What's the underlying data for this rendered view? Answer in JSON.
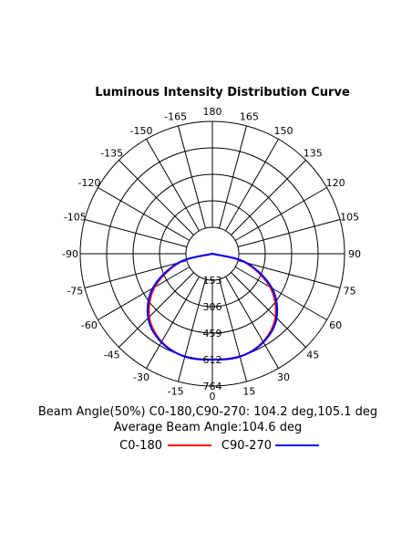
{
  "chart_data": {
    "type": "polar",
    "title": "Luminous Intensity Distribution Curve",
    "angle_labels": [
      "180",
      "165",
      "150",
      "135",
      "120",
      "105",
      "90",
      "75",
      "60",
      "45",
      "30",
      "15",
      "0",
      "-15",
      "-30",
      "-45",
      "-60",
      "-75",
      "-90",
      "-105",
      "-120",
      "-135",
      "-150",
      "-165"
    ],
    "radial_ticks": [
      153,
      306,
      459,
      612,
      764
    ],
    "radial_max": 764,
    "grid": true,
    "series": [
      {
        "name": "C0-180",
        "color": "#ff0000",
        "angles": [
          -90,
          -75,
          -60,
          -45,
          -30,
          -15,
          0,
          15,
          30,
          45,
          60,
          75,
          90
        ],
        "values": [
          0,
          198,
          386,
          516,
          587,
          615,
          610,
          615,
          587,
          516,
          386,
          198,
          0
        ]
      },
      {
        "name": "C90-270",
        "color": "#0000ff",
        "angles": [
          -90,
          -75,
          -60,
          -45,
          -30,
          -15,
          0,
          15,
          30,
          45,
          60,
          75,
          90
        ],
        "values": [
          0,
          205,
          398,
          525,
          590,
          615,
          612,
          615,
          590,
          525,
          398,
          205,
          0
        ]
      }
    ],
    "annotations": {
      "beam_angle": "Beam Angle(50%) C0-180,C90-270: 104.2 deg,105.1 deg",
      "average_beam_angle": "Average Beam Angle:104.6 deg"
    },
    "legend_placement": "bottom"
  }
}
